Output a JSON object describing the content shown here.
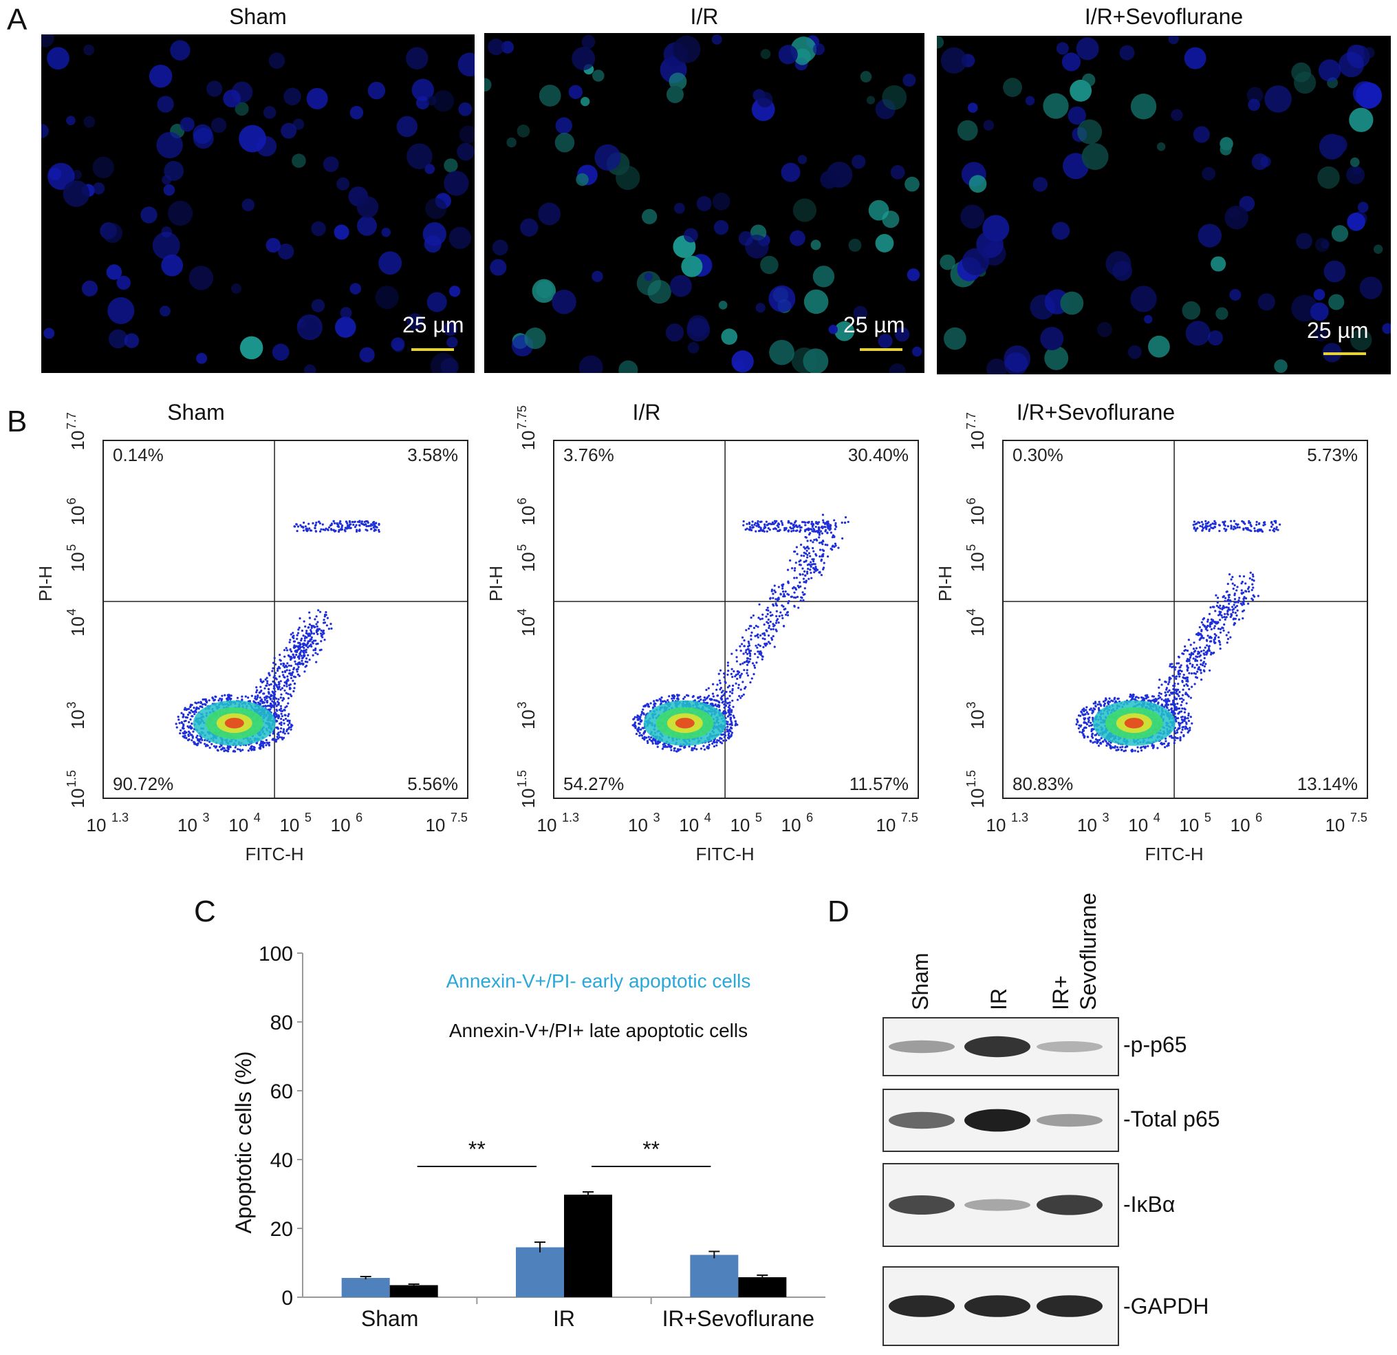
{
  "panel_labels": {
    "a": "A",
    "b": "B",
    "c": "C",
    "d": "D"
  },
  "microscopy": {
    "panels": [
      {
        "title": "Sham",
        "scale": "25 µm"
      },
      {
        "title": "I/R",
        "scale": "25 µm"
      },
      {
        "title": "I/R+Sevoflurane",
        "scale": "25 µm"
      }
    ]
  },
  "flow_cytometry": {
    "xlabel": "FITC-H",
    "ylabel": "PI-H",
    "plots": [
      {
        "title": "Sham",
        "ul": "0.14%",
        "ur": "3.58%",
        "ll": "90.72%",
        "lr": "5.56%",
        "ymax_exp": "7.7"
      },
      {
        "title": "I/R",
        "ul": "3.76%",
        "ur": "30.40%",
        "ll": "54.27%",
        "lr": "11.57%",
        "ymax_exp": "7.75"
      },
      {
        "title": "I/R+Sevoflurane",
        "ul": "0.30%",
        "ur": "5.73%",
        "ll": "80.83%",
        "lr": "13.14%",
        "ymax_exp": "7.7"
      }
    ]
  },
  "chart_data": {
    "type": "bar",
    "categories": [
      "Sham",
      "IR",
      "IR+Sevoflurane"
    ],
    "series": [
      {
        "name": "Annexin-V+/PI- early apoptotic cells",
        "values": [
          5.6,
          14.5,
          12.3
        ],
        "errors": [
          0.4,
          1.5,
          1.0
        ],
        "color": "#4f81bd"
      },
      {
        "name": "Annexin-V+/PI+ late apoptotic cells",
        "values": [
          3.5,
          29.8,
          5.8
        ],
        "errors": [
          0.3,
          0.8,
          0.6
        ],
        "color": "#000000"
      }
    ],
    "ylabel": "Apoptotic cells (%)",
    "ylim": [
      0,
      100
    ],
    "yticks": [
      "0",
      "20",
      "40",
      "60",
      "80",
      "100"
    ],
    "significance": [
      {
        "from": 0,
        "to": 1,
        "label": "**",
        "y": 38
      },
      {
        "from": 1,
        "to": 2,
        "label": "**",
        "y": 38
      }
    ]
  },
  "western_blot": {
    "lanes": [
      "Sham",
      "IR",
      "IR+\nSevoflurane"
    ],
    "lane_line1": [
      "Sham",
      "IR",
      "IR+"
    ],
    "lane_line2": [
      "",
      "",
      "Sevoflurane"
    ],
    "rows": [
      {
        "label": "-p-p65",
        "intensity": [
          0.35,
          0.85,
          0.25
        ]
      },
      {
        "label": "-Total p65",
        "intensity": [
          0.6,
          0.95,
          0.35
        ]
      },
      {
        "label": "-IκBα",
        "intensity": [
          0.75,
          0.3,
          0.8
        ]
      },
      {
        "label": "-GAPDH",
        "intensity": [
          0.9,
          0.9,
          0.9
        ]
      }
    ]
  }
}
